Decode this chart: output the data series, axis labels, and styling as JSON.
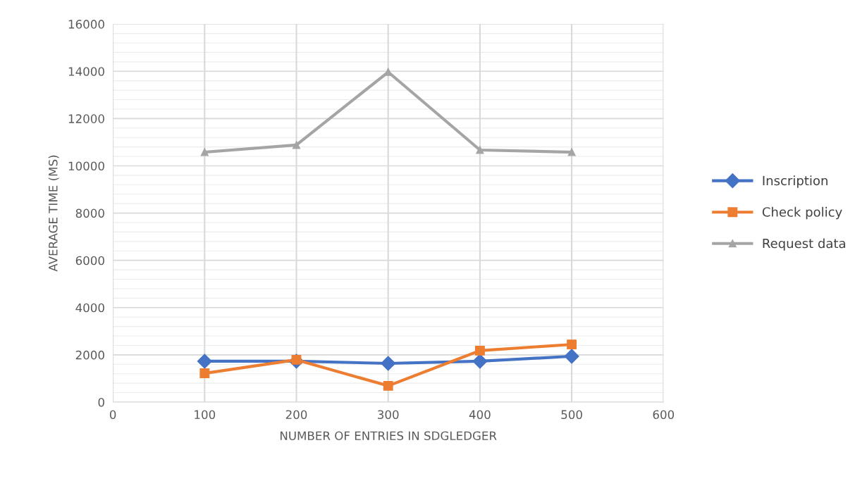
{
  "chart_data": {
    "type": "line",
    "xlabel": "NUMBER OF ENTRIES IN SDGLEDGER",
    "ylabel": "AVERAGE TIME (MS)",
    "x": [
      100,
      200,
      300,
      400,
      500
    ],
    "series": [
      {
        "name": "Inscription",
        "color": "#4472c4",
        "marker": "diamond",
        "values": [
          1730,
          1730,
          1640,
          1730,
          1940
        ]
      },
      {
        "name": "Check policy",
        "color": "#ed7d31",
        "marker": "square",
        "values": [
          1220,
          1790,
          690,
          2180,
          2440
        ]
      },
      {
        "name": "Request data",
        "color": "#a5a5a5",
        "marker": "triangle",
        "values": [
          10580,
          10880,
          13970,
          10670,
          10580
        ]
      }
    ],
    "xlim": [
      0,
      600
    ],
    "xticks": [
      0,
      100,
      200,
      300,
      400,
      500,
      600
    ],
    "ylim": [
      0,
      16000
    ],
    "yticks": [
      0,
      2000,
      4000,
      6000,
      8000,
      10000,
      12000,
      14000,
      16000
    ],
    "grid": true,
    "legend": "right",
    "line_style": "solid"
  }
}
